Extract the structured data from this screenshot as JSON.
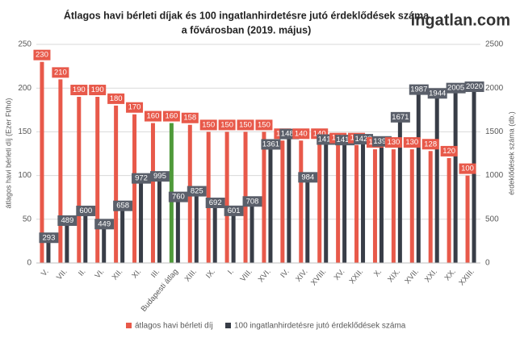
{
  "chart_data": {
    "type": "bar",
    "title": [
      "Átlagos havi bérleti díjak és 100 ingatlanhirdetésre jutó érdeklődések  száma",
      "a fővárosban  (2019. május)"
    ],
    "logo": "ingatlan.com",
    "ylabel": "átlagos havi bérleti díj (Ezer Ft/hó)",
    "y2label": "érdeklődések száma (db.)",
    "categories": [
      "V.",
      "VII.",
      "II.",
      "VI.",
      "XII.",
      "XI.",
      "III.",
      "Budapesti átlag",
      "XIII.",
      "IX.",
      "I.",
      "VIII.",
      "XVI.",
      "IV.",
      "XIV.",
      "XVIII.",
      "XV.",
      "XXII.",
      "X.",
      "XIX.",
      "XVII.",
      "XXI.",
      "XX.",
      "XXIII."
    ],
    "series": [
      {
        "name": "átlagos havi bérleti díj",
        "color": "#e8594a",
        "colors": [
          "#e8594a",
          "#e8594a",
          "#e8594a",
          "#e8594a",
          "#e8594a",
          "#e8594a",
          "#e8594a",
          "#4f9a3a",
          "#e8594a",
          "#e8594a",
          "#e8594a",
          "#e8594a",
          "#e8594a",
          "#e8594a",
          "#e8594a",
          "#e8594a",
          "#e8594a",
          "#e8594a",
          "#e8594a",
          "#e8594a",
          "#e8594a",
          "#e8594a",
          "#e8594a",
          "#e8594a"
        ],
        "values": [
          230,
          210,
          190,
          190,
          180,
          170,
          160,
          160,
          158,
          150,
          150,
          150,
          150,
          140,
          140,
          140,
          135,
          135,
          130,
          130,
          130,
          128,
          120,
          100
        ]
      },
      {
        "name": "100 ingatlanhirdetésre jutó érdeklődések száma",
        "color": "#383d47",
        "axis": "y2",
        "values": [
          293,
          489,
          600,
          449,
          658,
          972,
          995,
          760,
          825,
          692,
          601,
          708,
          1361,
          1480,
          984,
          1416,
          1410,
          1420,
          1395,
          1671,
          1987,
          1944,
          2005,
          2020
        ]
      }
    ],
    "ylim": [
      0,
      250
    ],
    "yticks": [
      0,
      50,
      100,
      150,
      200,
      250
    ],
    "y2lim": [
      0,
      2500
    ],
    "y2ticks": [
      0,
      500,
      1000,
      1500,
      2000,
      2500
    ],
    "grid": true,
    "legend": "bottom"
  }
}
